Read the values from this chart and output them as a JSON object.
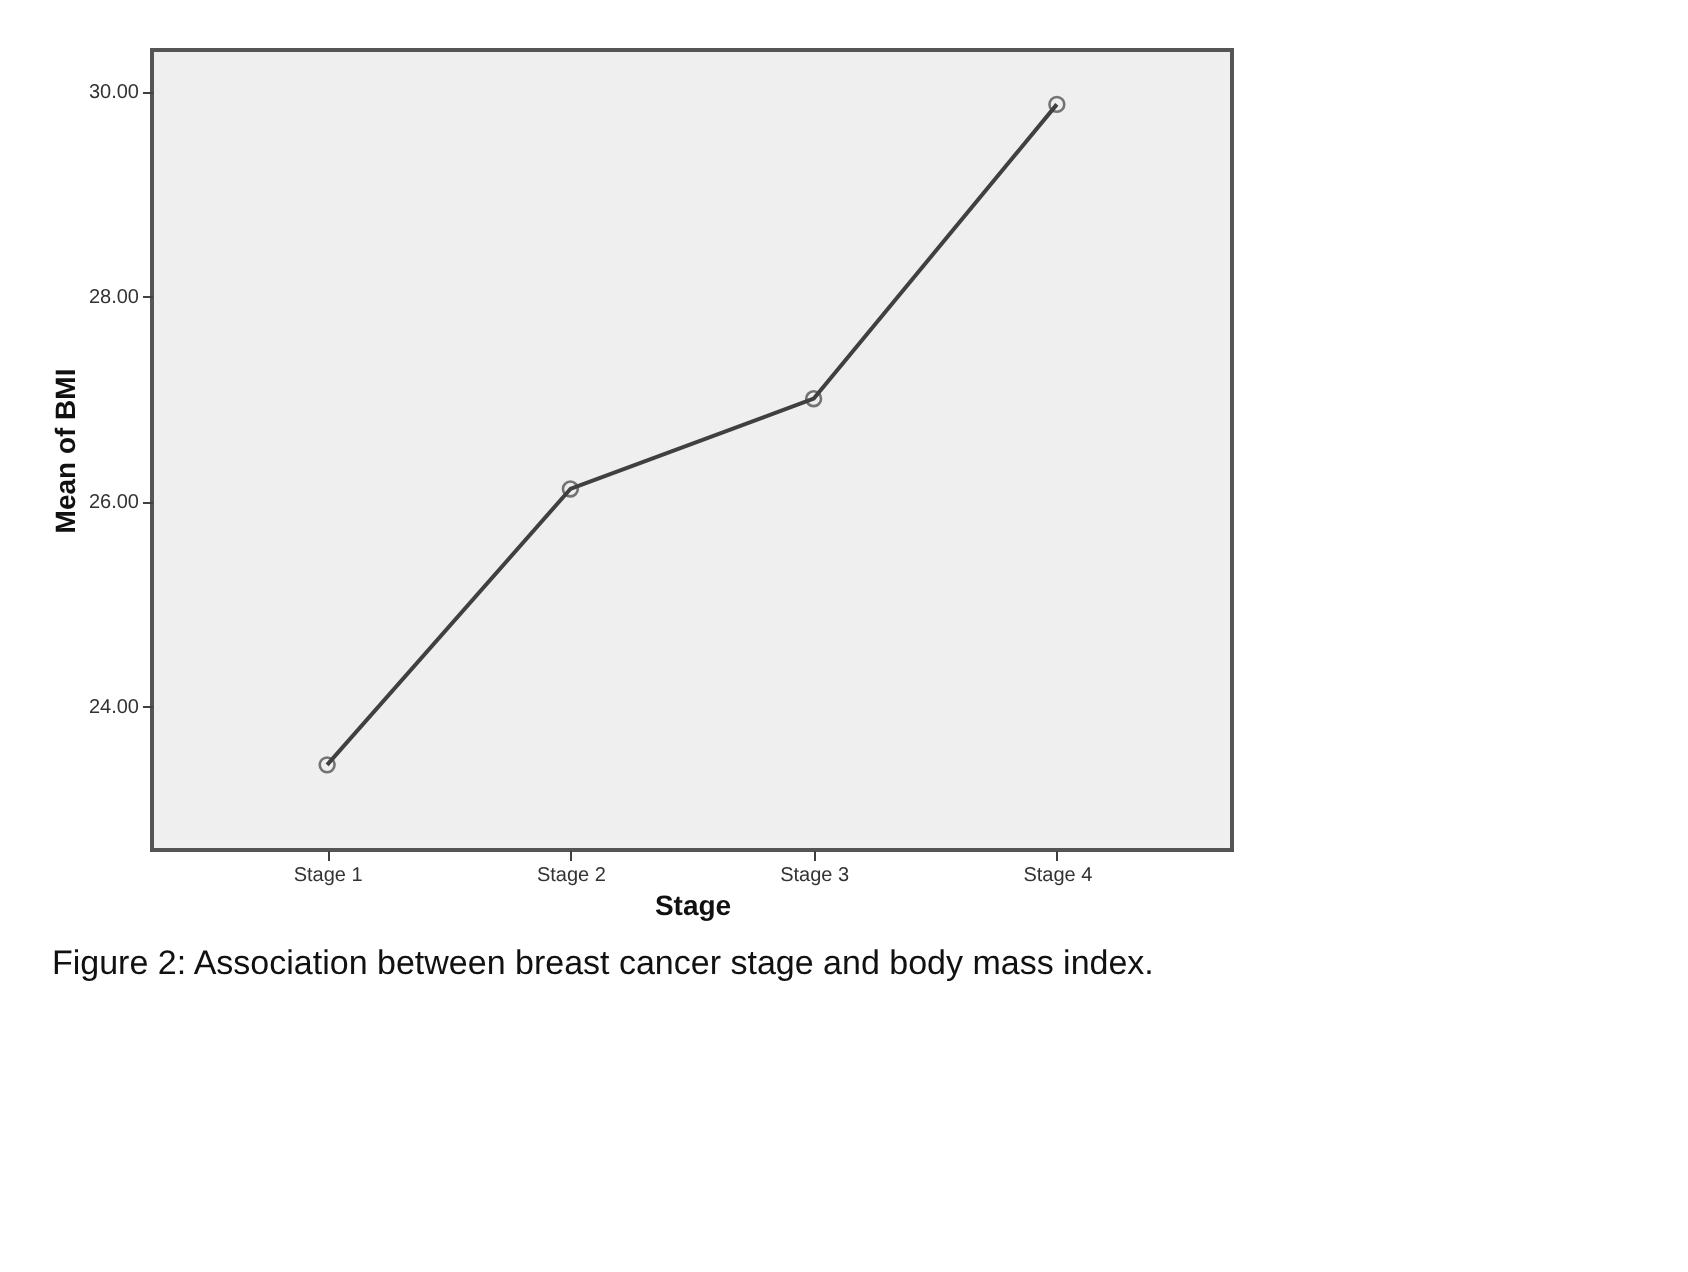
{
  "chart_data": {
    "type": "line",
    "xlabel": "Stage",
    "ylabel": "Mean of BMI",
    "categories": [
      "Stage 1",
      "Stage 2",
      "Stage 3",
      "Stage 4"
    ],
    "series": [
      {
        "color": "#404040",
        "values": [
          23.43,
          26.12,
          27.0,
          29.87
        ]
      }
    ],
    "ylim": [
      22.6,
      30.4
    ],
    "yticks": [
      {
        "value": 24,
        "label": "24.00"
      },
      {
        "value": 26,
        "label": "26.00"
      },
      {
        "value": 28,
        "label": "28.00"
      },
      {
        "value": 30,
        "label": "30.00"
      }
    ],
    "marker": "circle",
    "line_style": "solid",
    "grid": false,
    "legend": false,
    "annotations": [
      "Figure 2: Association between breast cancer stage and body mass index."
    ]
  }
}
